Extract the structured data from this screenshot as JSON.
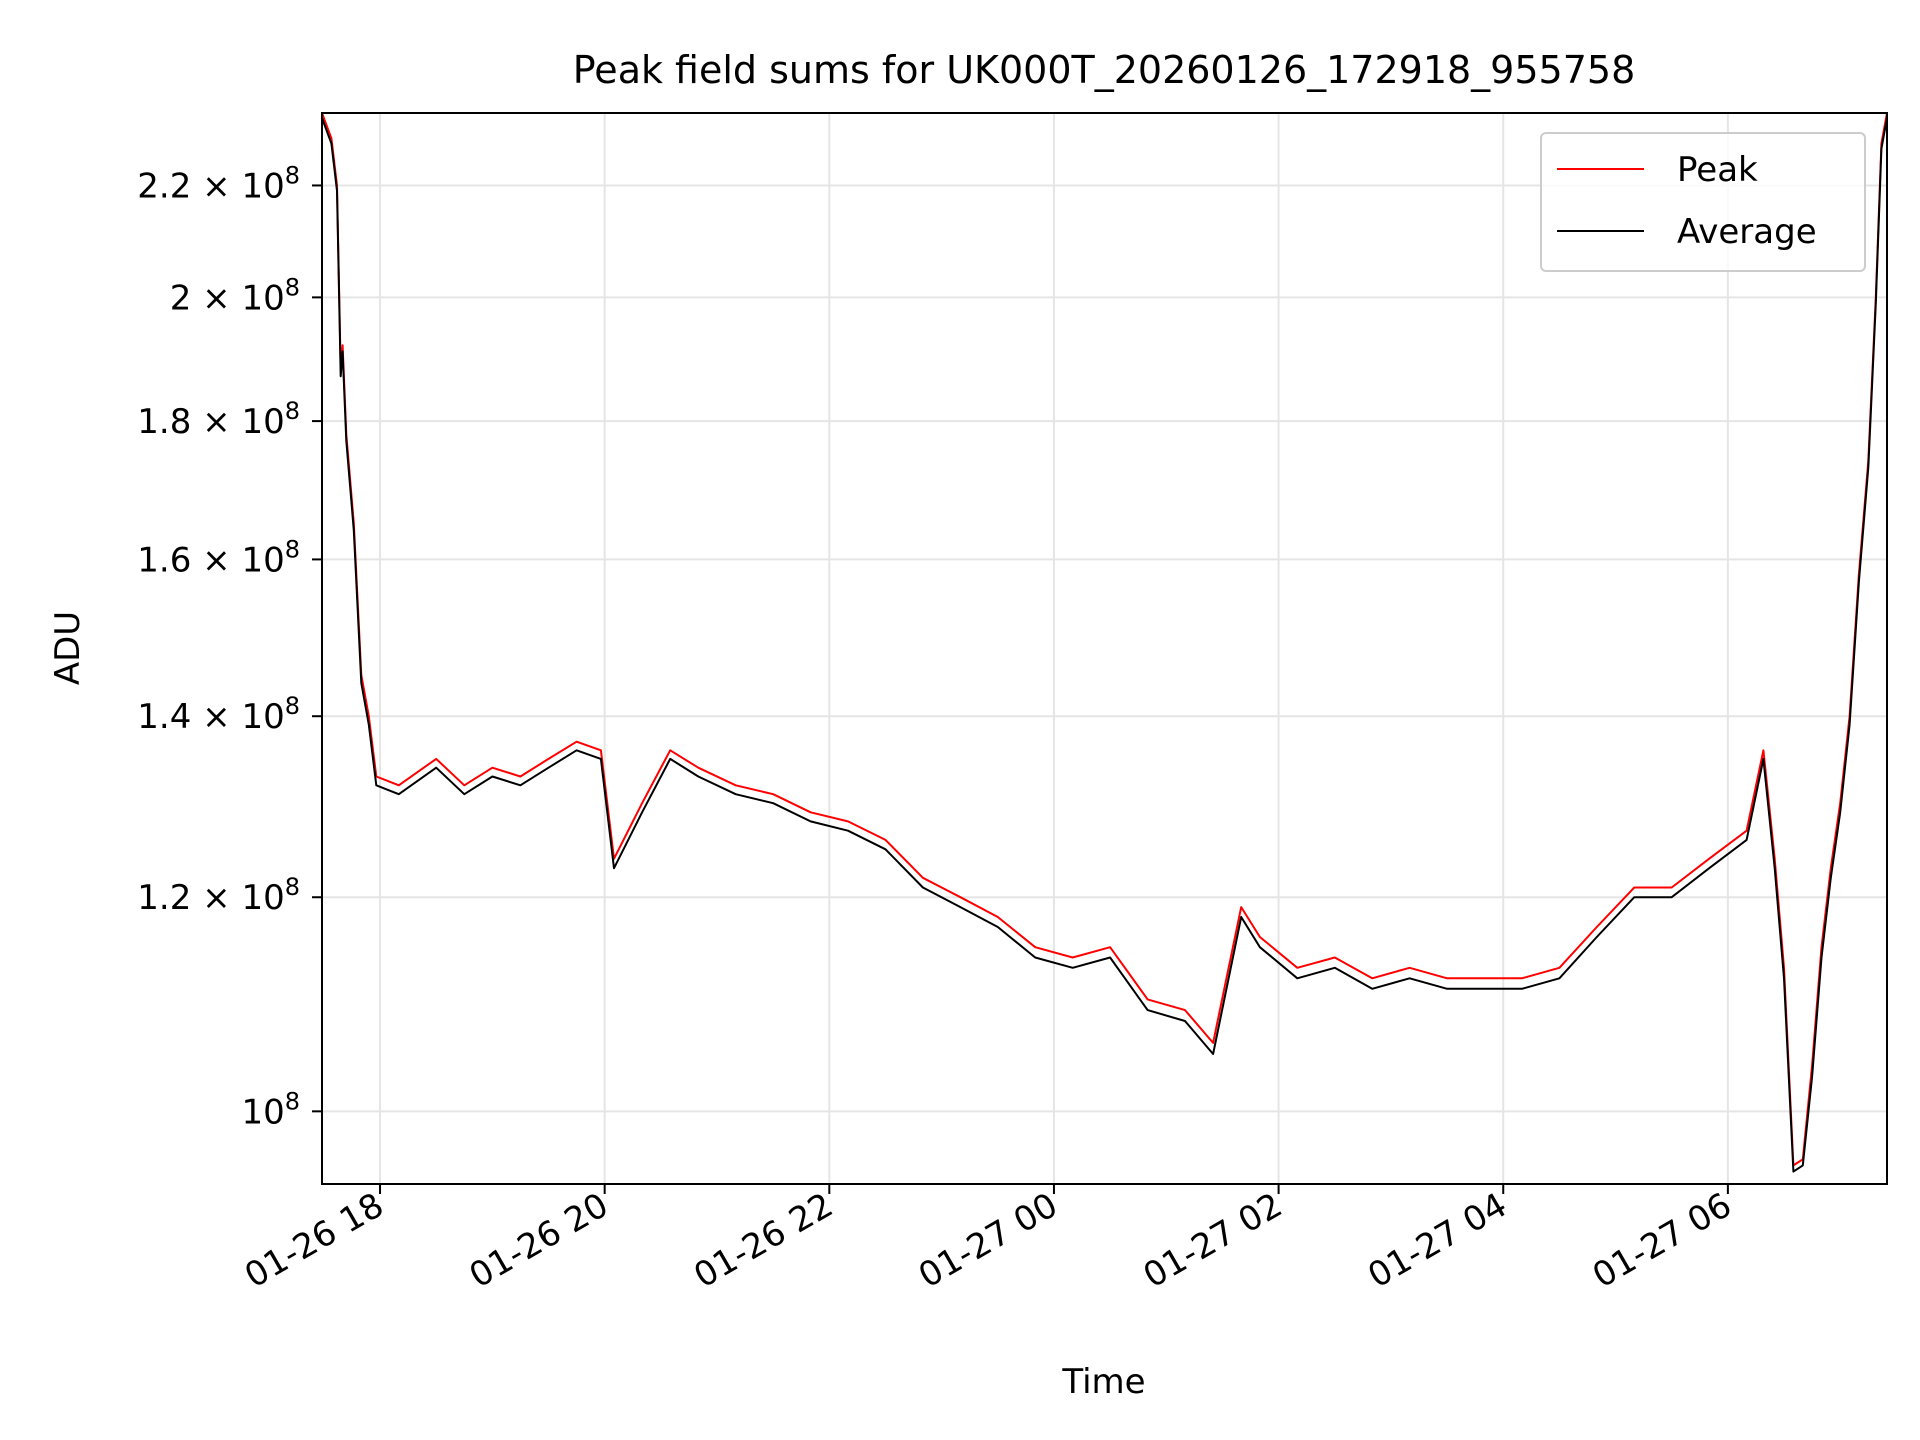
{
  "chart_data": {
    "type": "line",
    "title": "Peak field sums for UK000T_20260126_172918_955758",
    "xlabel": "Time",
    "ylabel": "ADU",
    "yscale": "log",
    "grid": true,
    "legend_position": "top-right",
    "xlim": [
      "2026-01-26 17:29",
      "2026-01-27 07:25"
    ],
    "ylim": [
      94000000,
      234000000
    ],
    "x_ticks": [
      {
        "t": "2026-01-26 18:00",
        "label": "01-26 18"
      },
      {
        "t": "2026-01-26 20:00",
        "label": "01-26 20"
      },
      {
        "t": "2026-01-26 22:00",
        "label": "01-26 22"
      },
      {
        "t": "2026-01-27 00:00",
        "label": "01-27 00"
      },
      {
        "t": "2026-01-27 02:00",
        "label": "01-27 02"
      },
      {
        "t": "2026-01-27 04:00",
        "label": "01-27 04"
      },
      {
        "t": "2026-01-27 06:00",
        "label": "01-27 06"
      }
    ],
    "y_ticks": [
      {
        "v": 100000000,
        "label": "10",
        "sup": "8"
      },
      {
        "v": 120000000,
        "label": "1.2 × 10",
        "sup": "8"
      },
      {
        "v": 140000000,
        "label": "1.4 × 10",
        "sup": "8"
      },
      {
        "v": 160000000,
        "label": "1.6 × 10",
        "sup": "8"
      },
      {
        "v": 180000000,
        "label": "1.8 × 10",
        "sup": "8"
      },
      {
        "v": 200000000,
        "label": "2 × 10",
        "sup": "8"
      },
      {
        "v": 220000000,
        "label": "2.2 × 10",
        "sup": "8"
      }
    ],
    "series": [
      {
        "name": "Peak",
        "color": "#ff0000",
        "points": [
          [
            "2026-01-26 17:29",
            234000000
          ],
          [
            "2026-01-26 17:34",
            229000000
          ],
          [
            "2026-01-26 17:37",
            220000000
          ],
          [
            "2026-01-26 17:39",
            188000000
          ],
          [
            "2026-01-26 17:40",
            192000000
          ],
          [
            "2026-01-26 17:42",
            178000000
          ],
          [
            "2026-01-26 17:46",
            165000000
          ],
          [
            "2026-01-26 17:50",
            145000000
          ],
          [
            "2026-01-26 17:54",
            140000000
          ],
          [
            "2026-01-26 17:58",
            133000000
          ],
          [
            "2026-01-26 18:10",
            132000000
          ],
          [
            "2026-01-26 18:30",
            135000000
          ],
          [
            "2026-01-26 18:45",
            132000000
          ],
          [
            "2026-01-26 19:00",
            134000000
          ],
          [
            "2026-01-26 19:15",
            133000000
          ],
          [
            "2026-01-26 19:30",
            135000000
          ],
          [
            "2026-01-26 19:45",
            137000000
          ],
          [
            "2026-01-26 19:58",
            136000000
          ],
          [
            "2026-01-26 20:05",
            124000000
          ],
          [
            "2026-01-26 20:20",
            130000000
          ],
          [
            "2026-01-26 20:35",
            136000000
          ],
          [
            "2026-01-26 20:50",
            134000000
          ],
          [
            "2026-01-26 21:10",
            132000000
          ],
          [
            "2026-01-26 21:30",
            131000000
          ],
          [
            "2026-01-26 21:50",
            129000000
          ],
          [
            "2026-01-26 22:10",
            128000000
          ],
          [
            "2026-01-26 22:30",
            126000000
          ],
          [
            "2026-01-26 22:50",
            122000000
          ],
          [
            "2026-01-26 23:10",
            120000000
          ],
          [
            "2026-01-26 23:30",
            118000000
          ],
          [
            "2026-01-26 23:50",
            115000000
          ],
          [
            "2026-01-27 00:10",
            114000000
          ],
          [
            "2026-01-27 00:30",
            115000000
          ],
          [
            "2026-01-27 00:50",
            110000000
          ],
          [
            "2026-01-27 01:10",
            109000000
          ],
          [
            "2026-01-27 01:25",
            106000000
          ],
          [
            "2026-01-27 01:40",
            119000000
          ],
          [
            "2026-01-27 01:50",
            116000000
          ],
          [
            "2026-01-27 02:10",
            113000000
          ],
          [
            "2026-01-27 02:30",
            114000000
          ],
          [
            "2026-01-27 02:50",
            112000000
          ],
          [
            "2026-01-27 03:10",
            113000000
          ],
          [
            "2026-01-27 03:30",
            112000000
          ],
          [
            "2026-01-27 03:50",
            112000000
          ],
          [
            "2026-01-27 04:10",
            112000000
          ],
          [
            "2026-01-27 04:30",
            113000000
          ],
          [
            "2026-01-27 04:50",
            117000000
          ],
          [
            "2026-01-27 05:10",
            121000000
          ],
          [
            "2026-01-27 05:30",
            121000000
          ],
          [
            "2026-01-27 05:50",
            124000000
          ],
          [
            "2026-01-27 06:10",
            127000000
          ],
          [
            "2026-01-27 06:19",
            136000000
          ],
          [
            "2026-01-27 06:25",
            124000000
          ],
          [
            "2026-01-27 06:30",
            113000000
          ],
          [
            "2026-01-27 06:35",
            95500000
          ],
          [
            "2026-01-27 06:40",
            96000000
          ],
          [
            "2026-01-27 06:45",
            104000000
          ],
          [
            "2026-01-27 06:50",
            115000000
          ],
          [
            "2026-01-27 06:55",
            123000000
          ],
          [
            "2026-01-27 07:00",
            130000000
          ],
          [
            "2026-01-27 07:05",
            140000000
          ],
          [
            "2026-01-27 07:10",
            158000000
          ],
          [
            "2026-01-27 07:15",
            174000000
          ],
          [
            "2026-01-27 07:19",
            200000000
          ],
          [
            "2026-01-27 07:22",
            228000000
          ],
          [
            "2026-01-27 07:25",
            234000000
          ]
        ]
      },
      {
        "name": "Average",
        "color": "#000000",
        "points": [
          [
            "2026-01-26 17:29",
            233000000
          ],
          [
            "2026-01-26 17:34",
            228000000
          ],
          [
            "2026-01-26 17:37",
            219000000
          ],
          [
            "2026-01-26 17:39",
            187000000
          ],
          [
            "2026-01-26 17:40",
            191000000
          ],
          [
            "2026-01-26 17:42",
            177000000
          ],
          [
            "2026-01-26 17:46",
            164000000
          ],
          [
            "2026-01-26 17:50",
            144000000
          ],
          [
            "2026-01-26 17:54",
            139000000
          ],
          [
            "2026-01-26 17:58",
            132000000
          ],
          [
            "2026-01-26 18:10",
            131000000
          ],
          [
            "2026-01-26 18:30",
            134000000
          ],
          [
            "2026-01-26 18:45",
            131000000
          ],
          [
            "2026-01-26 19:00",
            133000000
          ],
          [
            "2026-01-26 19:15",
            132000000
          ],
          [
            "2026-01-26 19:30",
            134000000
          ],
          [
            "2026-01-26 19:45",
            136000000
          ],
          [
            "2026-01-26 19:58",
            135000000
          ],
          [
            "2026-01-26 20:05",
            123000000
          ],
          [
            "2026-01-26 20:20",
            129000000
          ],
          [
            "2026-01-26 20:35",
            135000000
          ],
          [
            "2026-01-26 20:50",
            133000000
          ],
          [
            "2026-01-26 21:10",
            131000000
          ],
          [
            "2026-01-26 21:30",
            130000000
          ],
          [
            "2026-01-26 21:50",
            128000000
          ],
          [
            "2026-01-26 22:10",
            127000000
          ],
          [
            "2026-01-26 22:30",
            125000000
          ],
          [
            "2026-01-26 22:50",
            121000000
          ],
          [
            "2026-01-26 23:10",
            119000000
          ],
          [
            "2026-01-26 23:30",
            117000000
          ],
          [
            "2026-01-26 23:50",
            114000000
          ],
          [
            "2026-01-27 00:10",
            113000000
          ],
          [
            "2026-01-27 00:30",
            114000000
          ],
          [
            "2026-01-27 00:50",
            109000000
          ],
          [
            "2026-01-27 01:10",
            108000000
          ],
          [
            "2026-01-27 01:25",
            105000000
          ],
          [
            "2026-01-27 01:40",
            118000000
          ],
          [
            "2026-01-27 01:50",
            115000000
          ],
          [
            "2026-01-27 02:10",
            112000000
          ],
          [
            "2026-01-27 02:30",
            113000000
          ],
          [
            "2026-01-27 02:50",
            111000000
          ],
          [
            "2026-01-27 03:10",
            112000000
          ],
          [
            "2026-01-27 03:30",
            111000000
          ],
          [
            "2026-01-27 03:50",
            111000000
          ],
          [
            "2026-01-27 04:10",
            111000000
          ],
          [
            "2026-01-27 04:30",
            112000000
          ],
          [
            "2026-01-27 04:50",
            116000000
          ],
          [
            "2026-01-27 05:10",
            120000000
          ],
          [
            "2026-01-27 05:30",
            120000000
          ],
          [
            "2026-01-27 05:50",
            123000000
          ],
          [
            "2026-01-27 06:10",
            126000000
          ],
          [
            "2026-01-27 06:19",
            135000000
          ],
          [
            "2026-01-27 06:25",
            123000000
          ],
          [
            "2026-01-27 06:30",
            112000000
          ],
          [
            "2026-01-27 06:35",
            95000000
          ],
          [
            "2026-01-27 06:40",
            95500000
          ],
          [
            "2026-01-27 06:45",
            103000000
          ],
          [
            "2026-01-27 06:50",
            114000000
          ],
          [
            "2026-01-27 06:55",
            122000000
          ],
          [
            "2026-01-27 07:00",
            129000000
          ],
          [
            "2026-01-27 07:05",
            139000000
          ],
          [
            "2026-01-27 07:10",
            157000000
          ],
          [
            "2026-01-27 07:15",
            173000000
          ],
          [
            "2026-01-27 07:19",
            199000000
          ],
          [
            "2026-01-27 07:22",
            227000000
          ],
          [
            "2026-01-27 07:25",
            233000000
          ]
        ]
      }
    ]
  }
}
